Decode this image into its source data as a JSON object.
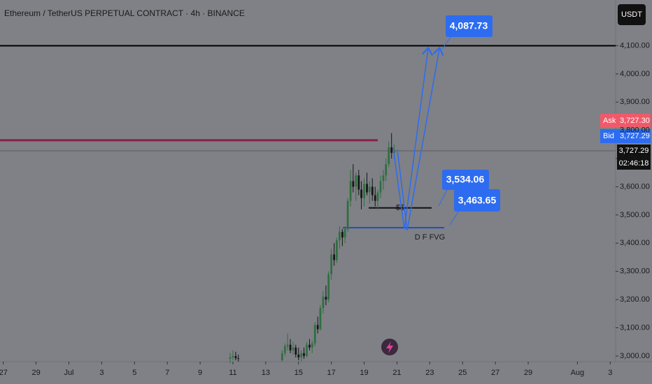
{
  "chart_data": {
    "type": "candlestick",
    "title": "Ethereum / TetherUS PERPETUAL CONTRACT · 4h · BINANCE",
    "currency_button": "USDT",
    "xlim": [
      -3.2,
      34.33
    ],
    "xticks": [
      {
        "value": -3,
        "label": "27"
      },
      {
        "value": -1,
        "label": "29"
      },
      {
        "value": 1,
        "label": "Jul"
      },
      3,
      5,
      7,
      9,
      11,
      13,
      15,
      17,
      19,
      21,
      23,
      25,
      27,
      29,
      {
        "value": 32,
        "label": "Aug"
      },
      {
        "value": 34,
        "label": "3"
      }
    ],
    "ylim": [
      2980,
      4262
    ],
    "yticks": [
      {
        "value": 3000,
        "label": "3,000.00"
      },
      {
        "value": 3100,
        "label": "3,100.00"
      },
      {
        "value": 3200,
        "label": "3,200.00"
      },
      {
        "value": 3300,
        "label": "3,300.00"
      },
      {
        "value": 3400,
        "label": "3,400.00"
      },
      {
        "value": 3500,
        "label": "3,500.00"
      },
      {
        "value": 3600,
        "label": "3,600.00"
      },
      {
        "value": 3700,
        "label": "3,700.00"
      },
      {
        "value": 3800,
        "label": "3,800.00"
      },
      {
        "value": 3900,
        "label": "3,900.00"
      },
      {
        "value": 4000,
        "label": "4,000.00"
      },
      {
        "value": 4100,
        "label": "4,100.00"
      }
    ],
    "up_color": "#2f6e40",
    "down_color": "#151515",
    "x": [
      10.83,
      11.0,
      11.17,
      11.33,
      14.0,
      14.17,
      14.33,
      14.5,
      14.67,
      14.83,
      15.0,
      15.17,
      15.33,
      15.5,
      15.67,
      15.83,
      16.0,
      16.17,
      16.33,
      16.5,
      16.67,
      16.83,
      17.0,
      17.17,
      17.33,
      17.5,
      17.67,
      17.83,
      18.0,
      18.17,
      18.33,
      18.5,
      18.67,
      18.83,
      19.0,
      19.17,
      19.33,
      19.5,
      19.67,
      19.83,
      20.0,
      20.17,
      20.33,
      20.5,
      20.67,
      20.83
    ],
    "open": [
      2990,
      2995,
      3000,
      2992,
      2985,
      3010,
      3035,
      3040,
      3020,
      3030,
      3005,
      2995,
      3010,
      3000,
      3040,
      3030,
      3045,
      3110,
      3095,
      3170,
      3210,
      3200,
      3290,
      3360,
      3340,
      3410,
      3440,
      3420,
      3450,
      3550,
      3620,
      3600,
      3640,
      3590,
      3560,
      3610,
      3580,
      3600,
      3570,
      3550,
      3580,
      3620,
      3640,
      3680,
      3740,
      3720
    ],
    "high": [
      3010,
      3020,
      3015,
      3005,
      3020,
      3045,
      3080,
      3060,
      3050,
      3040,
      3030,
      3020,
      3030,
      3050,
      3060,
      3055,
      3120,
      3140,
      3180,
      3230,
      3250,
      3300,
      3380,
      3400,
      3420,
      3460,
      3450,
      3460,
      3560,
      3660,
      3680,
      3650,
      3660,
      3620,
      3630,
      3650,
      3620,
      3630,
      3600,
      3590,
      3640,
      3660,
      3700,
      3760,
      3790,
      3750
    ],
    "low": [
      2975,
      2985,
      2985,
      2980,
      2980,
      3000,
      3020,
      3010,
      3005,
      2995,
      2985,
      2982,
      2990,
      2995,
      3020,
      3010,
      3035,
      3080,
      3090,
      3150,
      3180,
      3190,
      3270,
      3320,
      3330,
      3380,
      3390,
      3400,
      3440,
      3530,
      3580,
      3550,
      3570,
      3520,
      3530,
      3570,
      3540,
      3550,
      3530,
      3520,
      3560,
      3590,
      3620,
      3670,
      3700,
      3700
    ],
    "close": [
      2995,
      3000,
      2992,
      2990,
      3010,
      3035,
      3040,
      3020,
      3030,
      3005,
      2995,
      3010,
      3000,
      3040,
      3030,
      3045,
      3110,
      3095,
      3170,
      3210,
      3200,
      3290,
      3360,
      3340,
      3410,
      3440,
      3420,
      3450,
      3550,
      3620,
      3600,
      3640,
      3590,
      3560,
      3610,
      3580,
      3600,
      3570,
      3550,
      3580,
      3620,
      3640,
      3680,
      3740,
      3720,
      3727.29
    ],
    "levels": [
      {
        "value": 4100,
        "color": "#000000"
      },
      {
        "value": 3765,
        "color": "#8b1f4a"
      },
      {
        "value": 3525,
        "color": "#111111",
        "label": "$$"
      },
      {
        "value": 3455,
        "color": "#1f4fb3",
        "label": "D F FVG"
      }
    ],
    "callouts": [
      "4,087.73",
      "3,534.06",
      "3,463.65"
    ],
    "quote": {
      "ask_label": "Ask",
      "ask": {
        "value": 3727.3,
        "label": "3,727.30"
      },
      "bid_label": "Bid",
      "bid": {
        "value": 3727.29,
        "label": "3,727.29"
      },
      "last": {
        "value": 3727.29,
        "label": "3,727.29"
      },
      "countdown": "02:46:18"
    }
  }
}
